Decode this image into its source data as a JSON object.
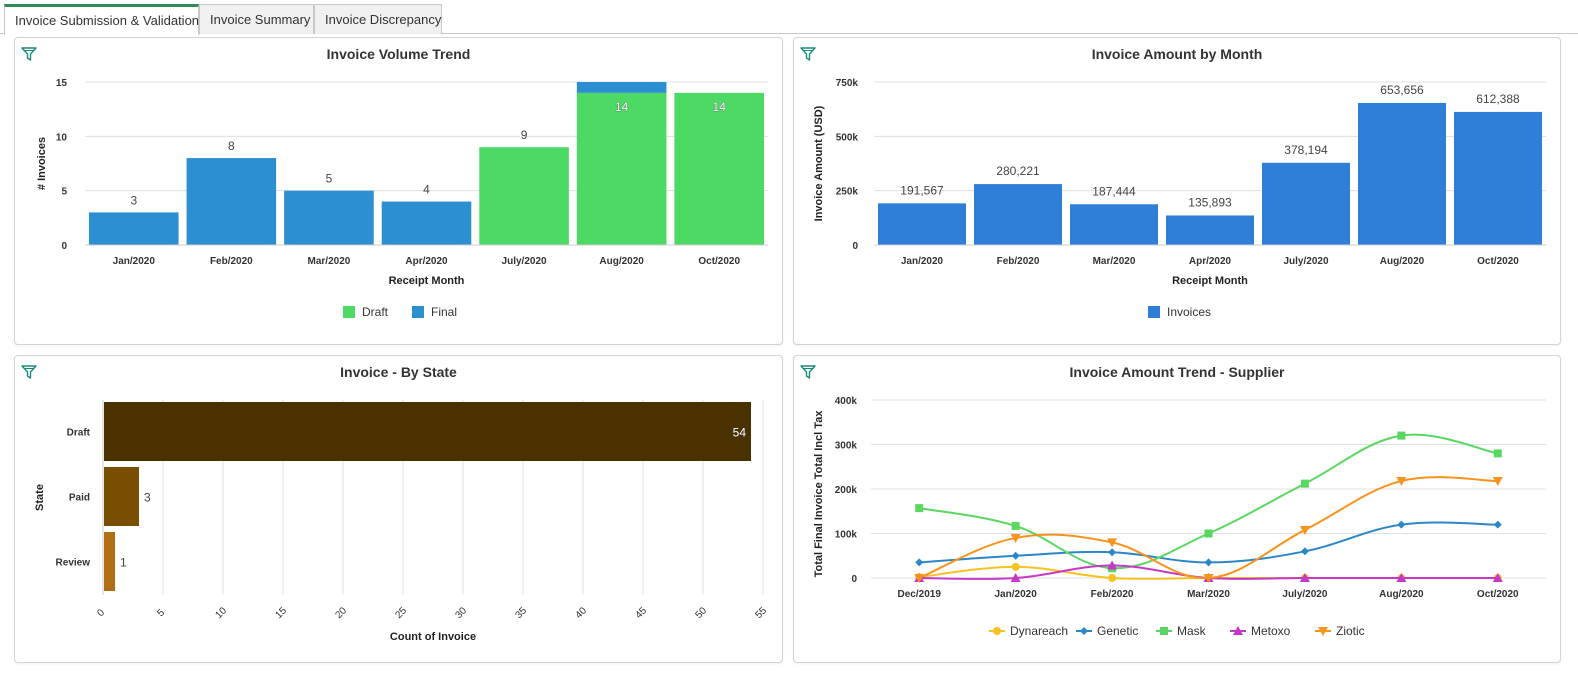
{
  "tabs": [
    {
      "label": "Invoice Submission & Validation",
      "active": true
    },
    {
      "label": "Invoice Summary",
      "active": false
    },
    {
      "label": "Invoice Discrepancy",
      "active": false
    }
  ],
  "icons": {
    "filter": "filter-icon"
  },
  "colors": {
    "tab_accent": "#2e8b57",
    "filter_icon": "#1a8a7a",
    "draft_green": "#4cd964",
    "final_blue": "#2b8fd1",
    "invoices_blue": "#2f7ed8",
    "state_draft": "#4a3100",
    "state_paid": "#7a4e00",
    "state_review": "#b06f12",
    "dynareach": "#f7c21f",
    "genetic": "#2b87c8",
    "mask": "#5ad760",
    "metoxo": "#c638c6",
    "ziotic": "#f7941d"
  },
  "chart_data": [
    {
      "id": "volume",
      "type": "bar",
      "stacked": true,
      "title": "Invoice Volume Trend",
      "xlabel": "Receipt Month",
      "ylabel": "# Invoices",
      "ylim": [
        0,
        15
      ],
      "yticks": [
        0,
        5,
        10,
        15
      ],
      "categories": [
        "Jan/2020",
        "Feb/2020",
        "Mar/2020",
        "Apr/2020",
        "July/2020",
        "Aug/2020",
        "Oct/2020"
      ],
      "series": [
        {
          "name": "Draft",
          "color": "#4cd964",
          "values": [
            0,
            0,
            0,
            0,
            9,
            14,
            14
          ]
        },
        {
          "name": "Final",
          "color": "#2b8fd1",
          "values": [
            3,
            8,
            5,
            4,
            0,
            1,
            0
          ]
        }
      ],
      "data_labels": [
        "3",
        "8",
        "5",
        "4",
        "9",
        "14",
        "14"
      ],
      "legend": "bottom"
    },
    {
      "id": "amount",
      "type": "bar",
      "title": "Invoice Amount by Month",
      "xlabel": "Receipt Month",
      "ylabel": "Invoice Amount (USD)",
      "ylim": [
        0,
        750000
      ],
      "yticks": [
        0,
        250000,
        500000,
        750000
      ],
      "ytick_labels": [
        "0",
        "250k",
        "500k",
        "750k"
      ],
      "categories": [
        "Jan/2020",
        "Feb/2020",
        "Mar/2020",
        "Apr/2020",
        "July/2020",
        "Aug/2020",
        "Oct/2020"
      ],
      "series": [
        {
          "name": "Invoices",
          "color": "#2f7ed8",
          "values": [
            191567,
            280221,
            187444,
            135893,
            378194,
            653656,
            612388
          ]
        }
      ],
      "data_labels": [
        "191,567",
        "280,221",
        "187,444",
        "135,893",
        "378,194",
        "653,656",
        "612,388"
      ],
      "legend": "bottom"
    },
    {
      "id": "state",
      "type": "bar",
      "orientation": "horizontal",
      "title": "Invoice - By State",
      "xlabel": "Count of Invoice",
      "ylabel": "State",
      "xlim": [
        0,
        55
      ],
      "xticks": [
        0,
        5,
        10,
        15,
        20,
        25,
        30,
        35,
        40,
        45,
        50,
        55
      ],
      "categories": [
        "Draft",
        "Paid",
        "Review"
      ],
      "values": [
        54,
        3,
        1
      ],
      "colors": [
        "#4a3100",
        "#7a4e00",
        "#b06f12"
      ],
      "data_labels": [
        "54",
        "3",
        "1"
      ]
    },
    {
      "id": "supplier",
      "type": "line",
      "title": "Invoice Amount Trend - Supplier",
      "xlabel": "",
      "ylabel": "Total Final Invoice Total Incl Tax",
      "ylim": [
        0,
        400000
      ],
      "yticks": [
        0,
        100000,
        200000,
        300000,
        400000
      ],
      "ytick_labels": [
        "0",
        "100k",
        "200k",
        "300k",
        "400k"
      ],
      "categories": [
        "Dec/2019",
        "Jan/2020",
        "Feb/2020",
        "Mar/2020",
        "July/2020",
        "Aug/2020",
        "Oct/2020"
      ],
      "series": [
        {
          "name": "Dynareach",
          "color": "#f7c21f",
          "marker": "circle",
          "values": [
            2000,
            25000,
            0,
            0,
            0,
            0,
            0
          ]
        },
        {
          "name": "Genetic",
          "color": "#2b87c8",
          "marker": "diamond",
          "values": [
            35000,
            50000,
            58000,
            35000,
            60000,
            120000,
            120000
          ]
        },
        {
          "name": "Mask",
          "color": "#5ad760",
          "marker": "square",
          "values": [
            157000,
            117000,
            22000,
            100000,
            212000,
            320000,
            280000
          ]
        },
        {
          "name": "Metoxo",
          "color": "#c638c6",
          "marker": "triangle",
          "values": [
            0,
            0,
            28000,
            0,
            0,
            0,
            0
          ]
        },
        {
          "name": "Ziotic",
          "color": "#f7941d",
          "marker": "triangle-down",
          "values": [
            0,
            90000,
            80000,
            0,
            108000,
            218000,
            218000
          ]
        }
      ],
      "legend": "bottom"
    }
  ]
}
